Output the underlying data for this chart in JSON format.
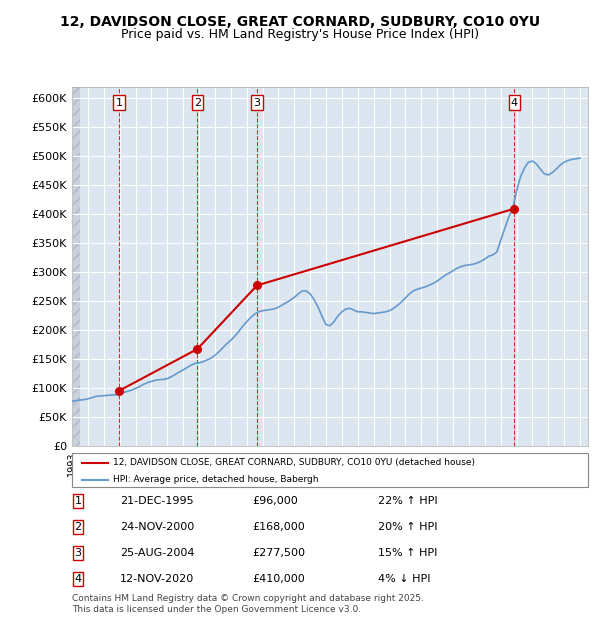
{
  "title_line1": "12, DAVIDSON CLOSE, GREAT CORNARD, SUDBURY, CO10 0YU",
  "title_line2": "Price paid vs. HM Land Registry's House Price Index (HPI)",
  "ylabel": "",
  "ylim": [
    0,
    620000
  ],
  "yticks": [
    0,
    50000,
    100000,
    150000,
    200000,
    250000,
    300000,
    350000,
    400000,
    450000,
    500000,
    550000,
    600000
  ],
  "ytick_labels": [
    "£0",
    "£50K",
    "£100K",
    "£150K",
    "£200K",
    "£250K",
    "£300K",
    "£350K",
    "£400K",
    "£450K",
    "£500K",
    "£550K",
    "£600K"
  ],
  "sale_color": "#cc0000",
  "hpi_color": "#6699cc",
  "bg_color": "#dce6f0",
  "hatch_color": "#c0c8d8",
  "grid_color": "#ffffff",
  "sale_label": "12, DAVIDSON CLOSE, GREAT CORNARD, SUDBURY, CO10 0YU (detached house)",
  "hpi_label": "HPI: Average price, detached house, Babergh",
  "purchases": [
    {
      "num": 1,
      "date": "21-DEC-1995",
      "price": 96000,
      "hpi_pct": "22% ↑ HPI",
      "year": 1995.97
    },
    {
      "num": 2,
      "date": "24-NOV-2000",
      "price": 168000,
      "hpi_pct": "20% ↑ HPI",
      "year": 2000.9
    },
    {
      "num": 3,
      "date": "25-AUG-2004",
      "price": 277500,
      "hpi_pct": "15% ↑ HPI",
      "year": 2004.65
    },
    {
      "num": 4,
      "date": "12-NOV-2020",
      "price": 410000,
      "hpi_pct": "4% ↓ HPI",
      "year": 2020.87
    }
  ],
  "footer": "Contains HM Land Registry data © Crown copyright and database right 2025.\nThis data is licensed under the Open Government Licence v3.0.",
  "hpi_data": {
    "years": [
      1993.0,
      1993.25,
      1993.5,
      1993.75,
      1994.0,
      1994.25,
      1994.5,
      1994.75,
      1995.0,
      1995.25,
      1995.5,
      1995.75,
      1996.0,
      1996.25,
      1996.5,
      1996.75,
      1997.0,
      1997.25,
      1997.5,
      1997.75,
      1998.0,
      1998.25,
      1998.5,
      1998.75,
      1999.0,
      1999.25,
      1999.5,
      1999.75,
      2000.0,
      2000.25,
      2000.5,
      2000.75,
      2001.0,
      2001.25,
      2001.5,
      2001.75,
      2002.0,
      2002.25,
      2002.5,
      2002.75,
      2003.0,
      2003.25,
      2003.5,
      2003.75,
      2004.0,
      2004.25,
      2004.5,
      2004.75,
      2005.0,
      2005.25,
      2005.5,
      2005.75,
      2006.0,
      2006.25,
      2006.5,
      2006.75,
      2007.0,
      2007.25,
      2007.5,
      2007.75,
      2008.0,
      2008.25,
      2008.5,
      2008.75,
      2009.0,
      2009.25,
      2009.5,
      2009.75,
      2010.0,
      2010.25,
      2010.5,
      2010.75,
      2011.0,
      2011.25,
      2011.5,
      2011.75,
      2012.0,
      2012.25,
      2012.5,
      2012.75,
      2013.0,
      2013.25,
      2013.5,
      2013.75,
      2014.0,
      2014.25,
      2014.5,
      2014.75,
      2015.0,
      2015.25,
      2015.5,
      2015.75,
      2016.0,
      2016.25,
      2016.5,
      2016.75,
      2017.0,
      2017.25,
      2017.5,
      2017.75,
      2018.0,
      2018.25,
      2018.5,
      2018.75,
      2019.0,
      2019.25,
      2019.5,
      2019.75,
      2020.0,
      2020.25,
      2020.5,
      2020.75,
      2021.0,
      2021.25,
      2021.5,
      2021.75,
      2022.0,
      2022.25,
      2022.5,
      2022.75,
      2023.0,
      2023.25,
      2023.5,
      2023.75,
      2024.0,
      2024.25,
      2024.5,
      2024.75,
      2025.0
    ],
    "values": [
      78000,
      79000,
      80000,
      80500,
      82000,
      84000,
      86000,
      87000,
      87500,
      88000,
      88500,
      89000,
      91000,
      93000,
      95000,
      97000,
      100000,
      103000,
      107000,
      110000,
      112000,
      114000,
      115000,
      115500,
      117000,
      120000,
      124000,
      128000,
      132000,
      136000,
      140000,
      143000,
      144000,
      146000,
      149000,
      152000,
      157000,
      163000,
      170000,
      177000,
      183000,
      190000,
      198000,
      207000,
      215000,
      222000,
      228000,
      232000,
      234000,
      235000,
      236000,
      237000,
      240000,
      244000,
      248000,
      252000,
      257000,
      263000,
      268000,
      268000,
      263000,
      253000,
      240000,
      224000,
      210000,
      208000,
      215000,
      225000,
      232000,
      237000,
      238000,
      235000,
      232000,
      232000,
      231000,
      230000,
      229000,
      230000,
      231000,
      232000,
      234000,
      238000,
      243000,
      249000,
      256000,
      263000,
      268000,
      271000,
      273000,
      275000,
      278000,
      281000,
      285000,
      290000,
      295000,
      299000,
      303000,
      307000,
      310000,
      312000,
      313000,
      314000,
      316000,
      319000,
      323000,
      328000,
      330000,
      335000,
      355000,
      375000,
      395000,
      410000,
      440000,
      465000,
      480000,
      490000,
      492000,
      487000,
      478000,
      470000,
      468000,
      472000,
      478000,
      485000,
      490000,
      493000,
      495000,
      496000,
      497000
    ]
  },
  "sale_data": {
    "years": [
      1995.97,
      2000.9,
      2004.65,
      2020.87
    ],
    "values": [
      96000,
      168000,
      277500,
      410000
    ]
  },
  "xmin": 1993,
  "xmax": 2025.5
}
